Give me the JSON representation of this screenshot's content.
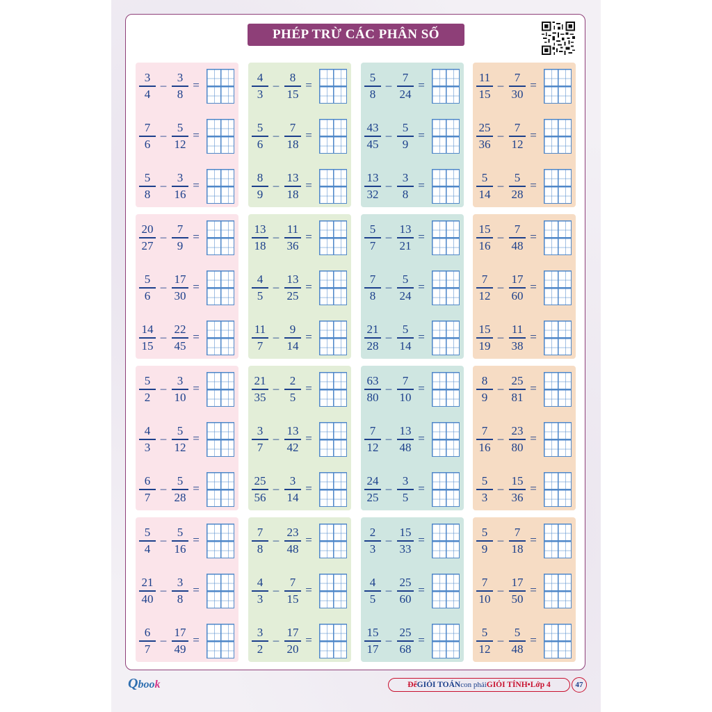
{
  "title": "PHÉP TRỪ CÁC PHÂN SỐ",
  "column_colors": [
    "#fbe4ea",
    "#e3eed8",
    "#cfe6e1",
    "#f6dcc4"
  ],
  "blocks": [
    {
      "row": 0,
      "col": 0,
      "problems": [
        {
          "a_num": "3",
          "a_den": "4",
          "b_num": "3",
          "b_den": "8"
        },
        {
          "a_num": "7",
          "a_den": "6",
          "b_num": "5",
          "b_den": "12"
        },
        {
          "a_num": "5",
          "a_den": "8",
          "b_num": "3",
          "b_den": "16"
        }
      ]
    },
    {
      "row": 0,
      "col": 1,
      "problems": [
        {
          "a_num": "4",
          "a_den": "3",
          "b_num": "8",
          "b_den": "15"
        },
        {
          "a_num": "5",
          "a_den": "6",
          "b_num": "7",
          "b_den": "18"
        },
        {
          "a_num": "8",
          "a_den": "9",
          "b_num": "13",
          "b_den": "18"
        }
      ]
    },
    {
      "row": 0,
      "col": 2,
      "problems": [
        {
          "a_num": "5",
          "a_den": "8",
          "b_num": "7",
          "b_den": "24"
        },
        {
          "a_num": "43",
          "a_den": "45",
          "b_num": "5",
          "b_den": "9"
        },
        {
          "a_num": "13",
          "a_den": "32",
          "b_num": "3",
          "b_den": "8"
        }
      ]
    },
    {
      "row": 0,
      "col": 3,
      "problems": [
        {
          "a_num": "11",
          "a_den": "15",
          "b_num": "7",
          "b_den": "30"
        },
        {
          "a_num": "25",
          "a_den": "36",
          "b_num": "7",
          "b_den": "12"
        },
        {
          "a_num": "5",
          "a_den": "14",
          "b_num": "5",
          "b_den": "28"
        }
      ]
    },
    {
      "row": 1,
      "col": 0,
      "problems": [
        {
          "a_num": "20",
          "a_den": "27",
          "b_num": "7",
          "b_den": "9"
        },
        {
          "a_num": "5",
          "a_den": "6",
          "b_num": "17",
          "b_den": "30"
        },
        {
          "a_num": "14",
          "a_den": "15",
          "b_num": "22",
          "b_den": "45"
        }
      ]
    },
    {
      "row": 1,
      "col": 1,
      "problems": [
        {
          "a_num": "13",
          "a_den": "18",
          "b_num": "11",
          "b_den": "36"
        },
        {
          "a_num": "4",
          "a_den": "5",
          "b_num": "13",
          "b_den": "25"
        },
        {
          "a_num": "11",
          "a_den": "7",
          "b_num": "9",
          "b_den": "14"
        }
      ]
    },
    {
      "row": 1,
      "col": 2,
      "problems": [
        {
          "a_num": "5",
          "a_den": "7",
          "b_num": "13",
          "b_den": "21"
        },
        {
          "a_num": "7",
          "a_den": "8",
          "b_num": "5",
          "b_den": "24"
        },
        {
          "a_num": "21",
          "a_den": "28",
          "b_num": "5",
          "b_den": "14"
        }
      ]
    },
    {
      "row": 1,
      "col": 3,
      "problems": [
        {
          "a_num": "15",
          "a_den": "16",
          "b_num": "7",
          "b_den": "48"
        },
        {
          "a_num": "7",
          "a_den": "12",
          "b_num": "17",
          "b_den": "60"
        },
        {
          "a_num": "15",
          "a_den": "19",
          "b_num": "11",
          "b_den": "38"
        }
      ]
    },
    {
      "row": 2,
      "col": 0,
      "problems": [
        {
          "a_num": "5",
          "a_den": "2",
          "b_num": "3",
          "b_den": "10"
        },
        {
          "a_num": "4",
          "a_den": "3",
          "b_num": "5",
          "b_den": "12"
        },
        {
          "a_num": "6",
          "a_den": "7",
          "b_num": "5",
          "b_den": "28"
        }
      ]
    },
    {
      "row": 2,
      "col": 1,
      "problems": [
        {
          "a_num": "21",
          "a_den": "35",
          "b_num": "2",
          "b_den": "5"
        },
        {
          "a_num": "3",
          "a_den": "7",
          "b_num": "13",
          "b_den": "42"
        },
        {
          "a_num": "25",
          "a_den": "56",
          "b_num": "3",
          "b_den": "14"
        }
      ]
    },
    {
      "row": 2,
      "col": 2,
      "problems": [
        {
          "a_num": "63",
          "a_den": "80",
          "b_num": "7",
          "b_den": "10"
        },
        {
          "a_num": "7",
          "a_den": "12",
          "b_num": "13",
          "b_den": "48"
        },
        {
          "a_num": "24",
          "a_den": "25",
          "b_num": "3",
          "b_den": "5"
        }
      ]
    },
    {
      "row": 2,
      "col": 3,
      "problems": [
        {
          "a_num": "8",
          "a_den": "9",
          "b_num": "25",
          "b_den": "81"
        },
        {
          "a_num": "7",
          "a_den": "16",
          "b_num": "23",
          "b_den": "80"
        },
        {
          "a_num": "5",
          "a_den": "3",
          "b_num": "15",
          "b_den": "36"
        }
      ]
    },
    {
      "row": 3,
      "col": 0,
      "problems": [
        {
          "a_num": "5",
          "a_den": "4",
          "b_num": "5",
          "b_den": "16"
        },
        {
          "a_num": "21",
          "a_den": "40",
          "b_num": "3",
          "b_den": "8"
        },
        {
          "a_num": "6",
          "a_den": "7",
          "b_num": "17",
          "b_den": "49"
        }
      ]
    },
    {
      "row": 3,
      "col": 1,
      "problems": [
        {
          "a_num": "7",
          "a_den": "8",
          "b_num": "23",
          "b_den": "48"
        },
        {
          "a_num": "4",
          "a_den": "3",
          "b_num": "7",
          "b_den": "15"
        },
        {
          "a_num": "3",
          "a_den": "2",
          "b_num": "17",
          "b_den": "20"
        }
      ]
    },
    {
      "row": 3,
      "col": 2,
      "problems": [
        {
          "a_num": "2",
          "a_den": "3",
          "b_num": "15",
          "b_den": "33"
        },
        {
          "a_num": "4",
          "a_den": "5",
          "b_num": "25",
          "b_den": "60"
        },
        {
          "a_num": "15",
          "a_den": "17",
          "b_num": "25",
          "b_den": "68"
        }
      ]
    },
    {
      "row": 3,
      "col": 3,
      "problems": [
        {
          "a_num": "5",
          "a_den": "9",
          "b_num": "7",
          "b_den": "18"
        },
        {
          "a_num": "7",
          "a_den": "10",
          "b_num": "17",
          "b_den": "50"
        },
        {
          "a_num": "5",
          "a_den": "12",
          "b_num": "5",
          "b_den": "48"
        }
      ]
    }
  ],
  "operators": {
    "minus": "–",
    "equals": "="
  },
  "footer": {
    "logo_q": "Q",
    "logo_rest": "boo",
    "logo_k": "k",
    "part1": "Để ",
    "part2": "GIỎI TOÁN",
    "part3": " con phải ",
    "part4": "GIỎI TÍNH",
    "part5": " • ",
    "part6": "Lớp 4",
    "page_number": "47"
  }
}
